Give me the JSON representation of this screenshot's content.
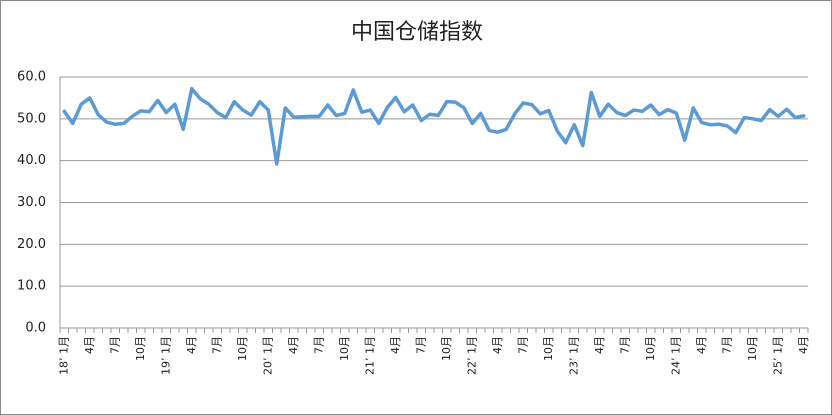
{
  "chart_data": {
    "type": "line",
    "title": "中国仓储指数",
    "categories": [
      "18’ 1月",
      null,
      null,
      "4月",
      null,
      null,
      "7月",
      null,
      null,
      "10月",
      null,
      null,
      "19’ 1月",
      null,
      null,
      "4月",
      null,
      null,
      "7月",
      null,
      null,
      "10月",
      null,
      null,
      "20’ 1月",
      null,
      null,
      "4月",
      null,
      null,
      "7月",
      null,
      null,
      "10月",
      null,
      null,
      "21’ 1月",
      null,
      null,
      "4月",
      null,
      null,
      "7月",
      null,
      null,
      "10月",
      null,
      null,
      "22’ 1月",
      null,
      null,
      "4月",
      null,
      null,
      "7月",
      null,
      null,
      "10月",
      null,
      null,
      "23’ 1月",
      null,
      null,
      "4月",
      null,
      null,
      "7月",
      null,
      null,
      "10月",
      null,
      null,
      "24’ 1月",
      null,
      null,
      "4月",
      null,
      null,
      "7月",
      null,
      null,
      "10月",
      null,
      null,
      "25’ 1月",
      null,
      null,
      "4月"
    ],
    "series": [
      {
        "color": "#5b9bd5",
        "values": [
          51.8,
          48.9,
          53.5,
          55.0,
          51.0,
          49.2,
          48.7,
          48.9,
          50.6,
          51.9,
          51.7,
          54.4,
          51.5,
          53.5,
          47.5,
          57.2,
          54.8,
          53.5,
          51.5,
          50.3,
          54.1,
          52.1,
          50.9,
          54.1,
          52.1,
          39.2,
          52.6,
          50.4,
          50.5,
          50.6,
          50.6,
          53.3,
          50.8,
          51.3,
          56.9,
          51.6,
          52.1,
          48.9,
          52.7,
          55.1,
          51.7,
          53.3,
          49.6,
          51.1,
          50.8,
          54.1,
          54.0,
          52.7,
          48.9,
          51.3,
          47.2,
          46.8,
          47.5,
          51.2,
          53.8,
          53.4,
          51.2,
          52.0,
          47.1,
          44.3,
          48.6,
          43.6,
          56.3,
          50.6,
          53.5,
          51.5,
          50.8,
          52.1,
          51.8,
          53.3,
          51.0,
          52.2,
          51.4,
          44.9,
          52.6,
          49.1,
          48.6,
          48.7,
          48.3,
          46.7,
          50.3,
          50.0,
          49.6,
          52.2,
          50.6,
          52.3,
          50.3,
          50.7
        ]
      }
    ],
    "ylim": [
      0,
      60
    ],
    "yticks": [
      {
        "value": 0,
        "label": "0.0"
      },
      {
        "value": 10,
        "label": "10.0"
      },
      {
        "value": 20,
        "label": "20.0"
      },
      {
        "value": 30,
        "label": "30.0"
      },
      {
        "value": 40,
        "label": "40.0"
      },
      {
        "value": 50,
        "label": "50.0"
      },
      {
        "value": 60,
        "label": "60.0"
      }
    ],
    "grid": true
  }
}
